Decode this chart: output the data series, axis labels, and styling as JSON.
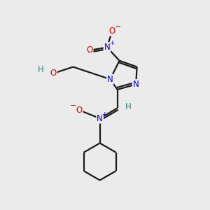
{
  "bg_color": "#ebebeb",
  "atom_colors": {
    "C": "#000000",
    "N": "#0000cc",
    "O": "#cc0000",
    "H": "#2a7a7a"
  },
  "bond_color": "#1a1a1a",
  "bond_width": 1.6,
  "figsize": [
    3.0,
    3.0
  ],
  "dpi": 100
}
